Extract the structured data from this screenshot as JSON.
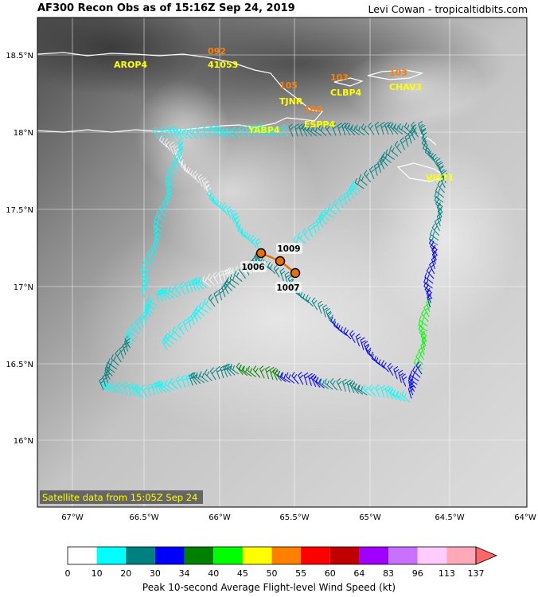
{
  "header": {
    "title": "AF300 Recon Obs as of 15:16Z Sep 24, 2019",
    "credit": "Levi Cowan - tropicaltidbits.com"
  },
  "map": {
    "lon_range": [
      -67.2,
      -64.0
    ],
    "lat_range": [
      15.55,
      18.75
    ],
    "lon_ticks": [
      "67°W",
      "66.5°W",
      "66°W",
      "65.5°W",
      "65°W",
      "64.5°W",
      "64°W"
    ],
    "lat_ticks": [
      "18.5°N",
      "18°N",
      "17.5°N",
      "17°N",
      "16.5°N",
      "16°N"
    ],
    "satellite_note": "Satellite data from 15:05Z Sep 24",
    "colors": {
      "label_yellow": "#ffff00",
      "label_orange": "#ff7f00",
      "track_orange": "#e8700a"
    }
  },
  "stations": [
    {
      "id": "AROP4",
      "lon": -66.66,
      "lat": 18.43
    },
    {
      "id": "41053",
      "lon": -66.1,
      "lat": 18.43
    },
    {
      "id": "TJNR",
      "lon": -65.55,
      "lat": 18.19
    },
    {
      "id": "CLBP4",
      "lon": -65.24,
      "lat": 18.27
    },
    {
      "id": "CHAV3",
      "lon": -64.72,
      "lat": 18.3
    },
    {
      "id": "YABP4",
      "lon": -65.85,
      "lat": 17.99
    },
    {
      "id": "ESPP4",
      "lon": -65.36,
      "lat": 18.04
    },
    {
      "id": "VIST1",
      "lon": -64.62,
      "lat": 17.69
    }
  ],
  "pressures": [
    {
      "value": "092",
      "lon": -66.06,
      "lat": 18.52
    },
    {
      "value": "105",
      "lon": -65.55,
      "lat": 18.29
    },
    {
      "value": "103",
      "lon": -65.24,
      "lat": 18.34
    },
    {
      "value": "103",
      "lon": -64.77,
      "lat": 18.37
    },
    {
      "value": "100",
      "lon": -65.4,
      "lat": 18.13
    }
  ],
  "center_fixes": [
    {
      "label": "1006",
      "lon": -65.72,
      "lat": 17.22
    },
    {
      "label": "1009",
      "lon": -65.59,
      "lat": 17.16
    },
    {
      "label": "1007",
      "lon": -65.5,
      "lat": 17.08
    }
  ],
  "colorbar": {
    "label": "Peak 10-second Average Flight-level Wind Speed (kt)",
    "ticks": [
      "0",
      "10",
      "20",
      "30",
      "34",
      "40",
      "45",
      "50",
      "55",
      "60",
      "64",
      "83",
      "96",
      "113",
      "137"
    ],
    "colors": [
      "#ffffff",
      "#00ffff",
      "#008080",
      "#0000ff",
      "#008000",
      "#00ff00",
      "#ffff00",
      "#ff8000",
      "#ff0000",
      "#c00000",
      "#a000ff",
      "#c870ff",
      "#ffccff",
      "#ffa8b8",
      "#ff6666"
    ]
  }
}
